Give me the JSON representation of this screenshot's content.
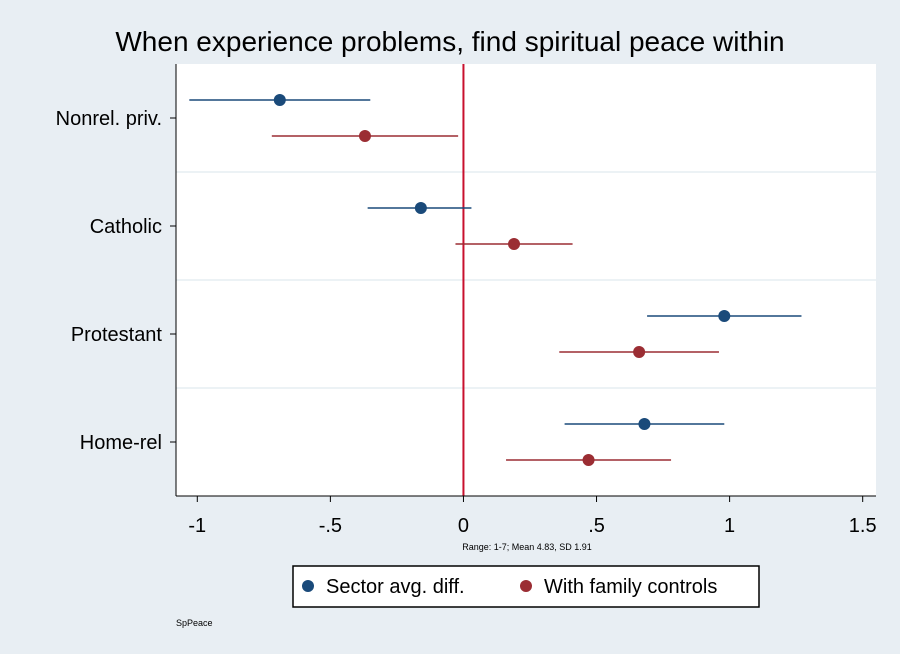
{
  "chart_data": {
    "type": "scatter",
    "title": "When experience problems, find spiritual peace within",
    "categories": [
      "Nonrel. priv.",
      "Catholic",
      "Protestant",
      "Home-rel"
    ],
    "xlim": [
      -1.08,
      1.55
    ],
    "x_ticks": [
      {
        "value": -1,
        "label": "-1"
      },
      {
        "value": -0.5,
        "label": "-.5"
      },
      {
        "value": 0,
        "label": "0"
      },
      {
        "value": 0.5,
        "label": ".5"
      },
      {
        "value": 1,
        "label": "1"
      },
      {
        "value": 1.5,
        "label": "1.5"
      }
    ],
    "reference_line": 0,
    "xlabel_note": "Range: 1-7; Mean 4.83, SD 1.91",
    "series": [
      {
        "name": "Sector avg. diff.",
        "color": "#1a4a7a",
        "points": [
          {
            "category": "Nonrel. priv.",
            "estimate": -0.69,
            "low": -1.03,
            "high": -0.35
          },
          {
            "category": "Catholic",
            "estimate": -0.16,
            "low": -0.36,
            "high": 0.03
          },
          {
            "category": "Protestant",
            "estimate": 0.98,
            "low": 0.69,
            "high": 1.27
          },
          {
            "category": "Home-rel",
            "estimate": 0.68,
            "low": 0.38,
            "high": 0.98
          }
        ]
      },
      {
        "name": "With family controls",
        "color": "#9b2d33",
        "points": [
          {
            "category": "Nonrel. priv.",
            "estimate": -0.37,
            "low": -0.72,
            "high": -0.02
          },
          {
            "category": "Catholic",
            "estimate": 0.19,
            "low": -0.03,
            "high": 0.41
          },
          {
            "category": "Protestant",
            "estimate": 0.66,
            "low": 0.36,
            "high": 0.96
          },
          {
            "category": "Home-rel",
            "estimate": 0.47,
            "low": 0.16,
            "high": 0.78
          }
        ]
      }
    ],
    "legend": [
      "Sector avg. diff.",
      "With family controls"
    ],
    "legend_position": "bottom-center",
    "source_note": "SpPeace"
  },
  "colors": {
    "background": "#e8eef3",
    "plot_background": "#ffffff",
    "reference_line": "#c8102e",
    "gridline": "#e6eef2"
  }
}
